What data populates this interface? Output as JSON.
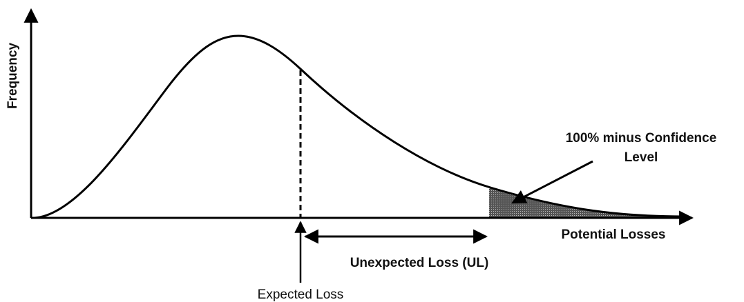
{
  "axes": {
    "y_label": "Frequency",
    "x_label": "Potential Losses"
  },
  "annotations": {
    "confidence": [
      "100% minus Confidence",
      "Level"
    ],
    "unexpected_loss": "Unexpected Loss (UL)",
    "expected_loss": "Expected Loss"
  }
}
